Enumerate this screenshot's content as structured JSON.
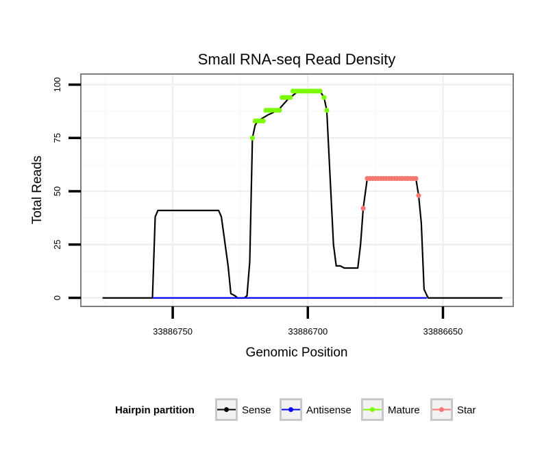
{
  "chart_data": {
    "type": "line",
    "title": "Small RNA-seq Read Density",
    "xlabel": "Genomic Position",
    "ylabel": "Total Reads",
    "x_reversed": true,
    "xlim": [
      33886784,
      33886624
    ],
    "ylim": [
      -4,
      105
    ],
    "x_ticks": [
      33886750,
      33886700,
      33886650
    ],
    "x_tick_labels": [
      "33886750",
      "33886700",
      "33886650"
    ],
    "y_ticks": [
      0,
      25,
      50,
      75,
      100
    ],
    "y_tick_labels": [
      "0",
      "25",
      "50",
      "75",
      "100"
    ],
    "grid": true,
    "legend": {
      "title": "Hairpin partition",
      "position": "bottom",
      "entries": [
        "Sense",
        "Antisense",
        "Mature",
        "Star"
      ]
    },
    "series": [
      {
        "name": "Sense",
        "color": "#000000",
        "marker": "line",
        "points": [
          [
            33886776,
            0
          ],
          [
            33886757.5,
            0
          ],
          [
            33886756.5,
            38
          ],
          [
            33886755.5,
            41
          ],
          [
            33886754,
            41
          ],
          [
            33886733,
            41
          ],
          [
            33886732,
            38
          ],
          [
            33886729.5,
            15
          ],
          [
            33886728.5,
            2
          ],
          [
            33886727,
            1
          ],
          [
            33886726,
            0
          ],
          [
            33886723.5,
            0
          ],
          [
            33886722.5,
            1
          ],
          [
            33886721.5,
            17
          ],
          [
            33886720.5,
            75
          ],
          [
            33886719.5,
            81
          ],
          [
            33886718.5,
            83
          ],
          [
            33886714.5,
            86
          ],
          [
            33886711,
            88
          ],
          [
            33886707.5,
            93
          ],
          [
            33886703.5,
            97
          ],
          [
            33886695.5,
            97
          ],
          [
            33886694,
            94
          ],
          [
            33886693,
            88
          ],
          [
            33886691.5,
            50
          ],
          [
            33886690.5,
            25
          ],
          [
            33886689.5,
            15
          ],
          [
            33886688,
            15
          ],
          [
            33886686.5,
            14
          ],
          [
            33886681.5,
            14
          ],
          [
            33886680.5,
            25
          ],
          [
            33886679.5,
            42
          ],
          [
            33886678,
            56
          ],
          [
            33886660,
            56
          ],
          [
            33886659,
            48
          ],
          [
            33886658,
            35
          ],
          [
            33886657,
            4
          ],
          [
            33886655.5,
            0
          ],
          [
            33886628,
            0
          ]
        ]
      },
      {
        "name": "Antisense",
        "color": "#0000ff",
        "marker": "line",
        "points": [
          [
            33886757.5,
            0
          ],
          [
            33886656,
            0
          ]
        ]
      },
      {
        "name": "Mature",
        "color": "#7cfc00",
        "marker": "dot",
        "points": [
          [
            33886720.5,
            75
          ],
          [
            33886719.5,
            83
          ],
          [
            33886718.5,
            83
          ],
          [
            33886717.5,
            83
          ],
          [
            33886716.5,
            83
          ],
          [
            33886715.5,
            88
          ],
          [
            33886714.5,
            88
          ],
          [
            33886713.5,
            88
          ],
          [
            33886712.5,
            88
          ],
          [
            33886711.5,
            88
          ],
          [
            33886710.5,
            88
          ],
          [
            33886709.5,
            94
          ],
          [
            33886708.5,
            94
          ],
          [
            33886707.5,
            94
          ],
          [
            33886706.5,
            94
          ],
          [
            33886705.5,
            97
          ],
          [
            33886704.5,
            97
          ],
          [
            33886703.5,
            97
          ],
          [
            33886702.5,
            97
          ],
          [
            33886701.5,
            97
          ],
          [
            33886700.5,
            97
          ],
          [
            33886699.5,
            97
          ],
          [
            33886698.5,
            97
          ],
          [
            33886697.5,
            97
          ],
          [
            33886696.5,
            97
          ],
          [
            33886695.5,
            97
          ],
          [
            33886694,
            94
          ],
          [
            33886693,
            88
          ]
        ]
      },
      {
        "name": "Star",
        "color": "#f8766d",
        "marker": "dot",
        "points": [
          [
            33886679.5,
            42
          ],
          [
            33886678,
            56
          ],
          [
            33886677,
            56
          ],
          [
            33886676,
            56
          ],
          [
            33886675,
            56
          ],
          [
            33886674,
            56
          ],
          [
            33886673,
            56
          ],
          [
            33886672,
            56
          ],
          [
            33886671,
            56
          ],
          [
            33886670,
            56
          ],
          [
            33886669,
            56
          ],
          [
            33886668,
            56
          ],
          [
            33886667,
            56
          ],
          [
            33886666,
            56
          ],
          [
            33886665,
            56
          ],
          [
            33886664,
            56
          ],
          [
            33886663,
            56
          ],
          [
            33886662,
            56
          ],
          [
            33886661,
            56
          ],
          [
            33886660,
            56
          ],
          [
            33886659,
            48
          ]
        ]
      }
    ]
  }
}
